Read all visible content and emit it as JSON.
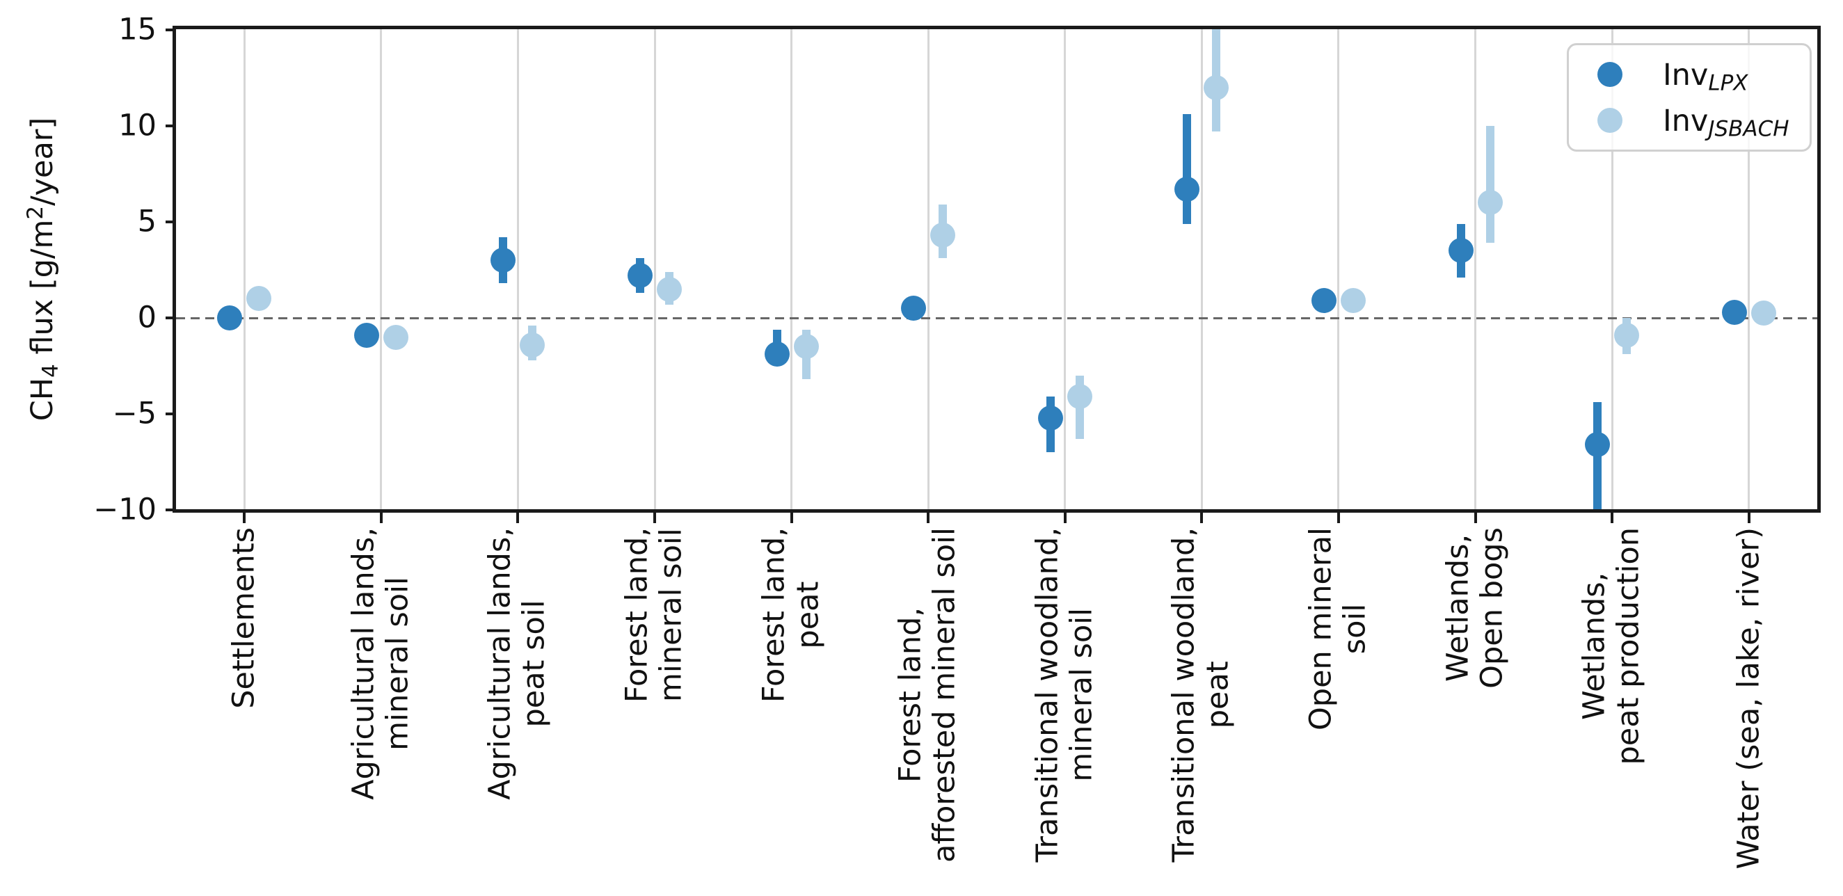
{
  "chart_data": {
    "type": "scatter",
    "title": "",
    "ylabel": "CH4 flux [g/m2/year]",
    "ylabel_parts": [
      "CH",
      "4",
      " flux [g/m",
      "2",
      "/year]"
    ],
    "ylim": [
      -10,
      15
    ],
    "yticks": [
      -10,
      -5,
      0,
      5,
      10,
      15
    ],
    "grid": "vertical-per-category",
    "zero_line_dashed": true,
    "legend_position": "upper right",
    "categories": [
      [
        "Settlements"
      ],
      [
        "Agricultural lands,",
        "mineral soil"
      ],
      [
        "Agricultural lands,",
        "peat soil"
      ],
      [
        "Forest land,",
        "mineral soil"
      ],
      [
        "Forest land,",
        "peat"
      ],
      [
        "Forest land,",
        "afforested mineral soil"
      ],
      [
        "Transitional woodland,",
        "mineral soil"
      ],
      [
        "Transitional woodland,",
        "peat"
      ],
      [
        "Open mineral",
        "soil"
      ],
      [
        "Wetlands,",
        "Open bogs"
      ],
      [
        "Wetlands,",
        "peat production"
      ],
      [
        "Water (sea, lake, river)"
      ]
    ],
    "series": [
      {
        "name": "Inv_LPX",
        "color": "#2e7fbc",
        "values": [
          0.0,
          -0.9,
          3.0,
          2.2,
          -1.9,
          0.5,
          -5.2,
          6.7,
          0.9,
          3.5,
          -6.6,
          0.3
        ],
        "err_lo": [
          -0.4,
          -1.3,
          1.8,
          1.3,
          -2.5,
          0.0,
          -7.0,
          4.9,
          0.4,
          2.1,
          -10.2,
          0.0
        ],
        "err_hi": [
          0.4,
          -0.5,
          4.2,
          3.1,
          -0.6,
          1.0,
          -4.1,
          10.6,
          1.4,
          4.9,
          -4.4,
          0.6
        ]
      },
      {
        "name": "Inv_JSBACH",
        "color": "#afd0e6",
        "values": [
          1.0,
          -1.0,
          -1.4,
          1.5,
          -1.5,
          4.3,
          -4.1,
          12.0,
          0.9,
          6.0,
          -0.9,
          0.25
        ],
        "err_lo": [
          0.6,
          -1.4,
          -2.2,
          0.7,
          -3.2,
          3.1,
          -6.3,
          9.7,
          0.3,
          3.9,
          -1.9,
          -0.05
        ],
        "err_hi": [
          1.4,
          -0.6,
          -0.4,
          2.4,
          -0.6,
          5.9,
          -3.0,
          15.6,
          1.5,
          10.0,
          0.0,
          0.55
        ]
      }
    ]
  },
  "legend": {
    "items": [
      {
        "main": "Inv",
        "sub": "LPX"
      },
      {
        "main": "Inv",
        "sub": "JSBACH"
      }
    ]
  }
}
